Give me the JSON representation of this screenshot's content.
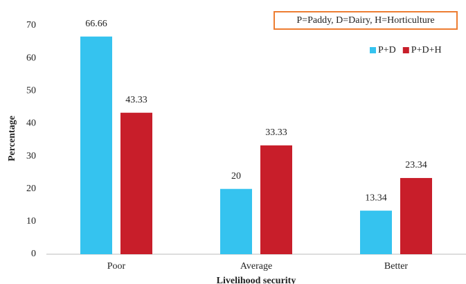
{
  "chart_data": {
    "type": "bar",
    "annotation": "P=Paddy, D=Dairy,  H=Horticulture",
    "ylabel": "Percentage",
    "xlabel": "Livelihood security",
    "categories": [
      "Poor",
      "Average",
      "Better"
    ],
    "series": [
      {
        "name": "P+D",
        "color": "#35c3ef",
        "values": [
          66.66,
          20,
          13.34
        ]
      },
      {
        "name": "P+D+H",
        "color": "#c81e2a",
        "values": [
          43.33,
          33.33,
          23.34
        ]
      }
    ],
    "ylim": [
      0,
      70
    ],
    "yticks": [
      0,
      10,
      20,
      30,
      40,
      50,
      60,
      70
    ],
    "legend": "top-right"
  }
}
